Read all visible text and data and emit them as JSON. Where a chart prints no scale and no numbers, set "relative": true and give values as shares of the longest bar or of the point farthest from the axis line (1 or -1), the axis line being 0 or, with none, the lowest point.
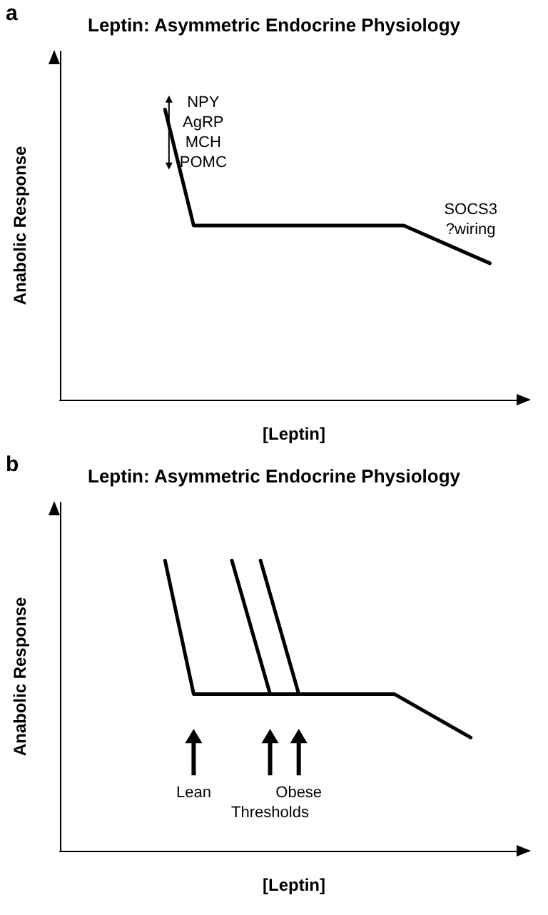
{
  "chart_data": [
    {
      "type": "line",
      "title": "Leptin: Asymmetric Endocrine Physiology",
      "xlabel": "[Leptin]",
      "ylabel": "Anabolic Response",
      "relative": true,
      "marker": "none",
      "line_style": "solid",
      "grid": false,
      "annotations": [
        "a",
        "NPY\nAgRP\nMCH\nPOMC",
        "SOCS3\n?wiring"
      ],
      "categories": [
        null,
        null,
        null,
        null,
        null,
        null,
        null,
        null,
        null,
        null,
        null,
        null,
        null,
        null,
        null,
        null,
        null,
        null,
        null,
        null,
        null,
        null,
        null,
        null,
        null,
        null,
        null,
        null,
        null,
        null,
        null,
        null,
        null,
        null,
        null,
        null,
        null,
        null,
        null,
        null,
        null,
        null,
        null,
        null,
        null,
        null,
        null,
        null,
        null,
        null
      ],
      "series": [
        {
          "color": "#000000",
          "values": [
            null,
            null,
            null,
            null,
            null,
            null,
            null,
            null,
            null,
            null,
            null,
            1,
            null,
            null,
            0.6,
            null,
            null,
            null,
            null,
            null,
            null,
            null,
            null,
            null,
            null,
            null,
            null,
            null,
            null,
            null,
            null,
            null,
            null,
            null,
            null,
            null,
            0.6,
            null,
            null,
            null,
            null,
            null,
            null,
            null,
            null,
            0.47,
            null,
            null,
            null,
            null
          ]
        }
      ]
    },
    {
      "type": "line",
      "title": "Leptin: Asymmetric Endocrine Physiology",
      "xlabel": "[Leptin]",
      "ylabel": "Anabolic Response",
      "relative": true,
      "marker": "none",
      "line_style": "solid",
      "grid": false,
      "annotations": [
        "b",
        "Lean",
        "Thresholds",
        "Obese"
      ],
      "categories": [
        null,
        null,
        null,
        null,
        null,
        null,
        null,
        null,
        null,
        null,
        null,
        null,
        null,
        null,
        null,
        null,
        null,
        null,
        null,
        null,
        null,
        null,
        null,
        null,
        null,
        null,
        null,
        null,
        null,
        null,
        null,
        null,
        null,
        null,
        null,
        null,
        null,
        null,
        null,
        null,
        null,
        null,
        null,
        null,
        null,
        null,
        null,
        null,
        null,
        null
      ],
      "series": [
        {
          "color": "#000000",
          "values": [
            null,
            null,
            null,
            null,
            null,
            null,
            null,
            null,
            null,
            null,
            null,
            1,
            null,
            null,
            0.54,
            null,
            null,
            null,
            null,
            null,
            null,
            null,
            null,
            null,
            null,
            null,
            null,
            null,
            null,
            null,
            null,
            null,
            null,
            null,
            null,
            0.54,
            null,
            null,
            null,
            null,
            null,
            null,
            null,
            0.39,
            null,
            null,
            null,
            null,
            null,
            null
          ]
        },
        {
          "color": "#000000",
          "values": [
            null,
            null,
            null,
            null,
            null,
            null,
            null,
            null,
            null,
            null,
            null,
            null,
            null,
            null,
            null,
            null,
            null,
            null,
            1,
            null,
            null,
            null,
            0.54,
            null,
            null,
            null,
            null,
            null,
            null,
            null,
            null,
            null,
            null,
            null,
            null,
            null,
            null,
            null,
            null,
            null,
            null,
            null,
            null,
            null,
            null,
            null,
            null,
            null,
            null,
            null
          ]
        },
        {
          "color": "#000000",
          "values": [
            null,
            null,
            null,
            null,
            null,
            null,
            null,
            null,
            null,
            null,
            null,
            null,
            null,
            null,
            null,
            null,
            null,
            null,
            null,
            null,
            null,
            1,
            null,
            null,
            null,
            0.54,
            null,
            null,
            null,
            null,
            null,
            null,
            null,
            null,
            null,
            null,
            null,
            null,
            null,
            null,
            null,
            null,
            null,
            null,
            null,
            null,
            null,
            null,
            null,
            null
          ]
        }
      ]
    }
  ]
}
